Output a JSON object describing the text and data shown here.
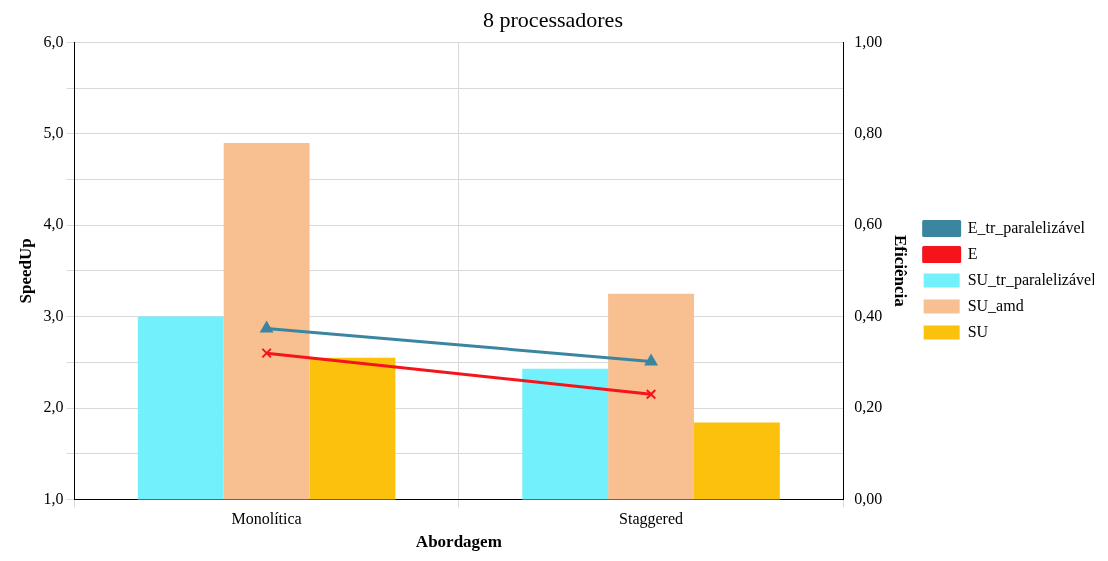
{
  "chart_data": {
    "type": "bar",
    "title": "8 processadores",
    "xlabel": "Abordagem",
    "ylabel": "SpeedUp",
    "y2label": "Eficiência",
    "categories": [
      "Monolítica",
      "Staggered"
    ],
    "series": [
      {
        "name": "SU_tr_paralelizável",
        "color": "#72f0fc",
        "values": [
          3.0,
          2.43
        ]
      },
      {
        "name": "SU_amd",
        "color": "#f8bf91",
        "values": [
          4.9,
          3.25
        ]
      },
      {
        "name": "SU",
        "color": "#fcc10c",
        "values": [
          2.55,
          1.84
        ]
      },
      {
        "name": "E_tr_paralelizável",
        "type": "line",
        "axis": "y2",
        "color": "#3a86a0",
        "marker": "triangle",
        "values": [
          0.374,
          0.302
        ]
      },
      {
        "name": "E",
        "type": "line",
        "axis": "y2",
        "color": "#f5141b",
        "marker": "cross",
        "values": [
          0.32,
          0.23
        ]
      }
    ],
    "ylim": [
      1,
      6
    ],
    "yticks": [
      {
        "value": 1,
        "label": "1,0"
      },
      {
        "value": 2,
        "label": "2,0"
      },
      {
        "value": 3,
        "label": "3,0"
      },
      {
        "value": 4,
        "label": "4,0"
      },
      {
        "value": 5,
        "label": "5,0"
      },
      {
        "value": 6,
        "label": "6,0"
      }
    ],
    "y2lim": [
      0,
      1
    ],
    "y2ticks": [
      {
        "value": 0,
        "label": "0,00"
      },
      {
        "value": 0.2,
        "label": "0,20"
      },
      {
        "value": 0.4,
        "label": "0,40"
      },
      {
        "value": 0.6,
        "label": "0,60"
      },
      {
        "value": 0.8,
        "label": "0,80"
      },
      {
        "value": 1,
        "label": "1,00"
      }
    ],
    "grid": true,
    "legend": "right"
  }
}
